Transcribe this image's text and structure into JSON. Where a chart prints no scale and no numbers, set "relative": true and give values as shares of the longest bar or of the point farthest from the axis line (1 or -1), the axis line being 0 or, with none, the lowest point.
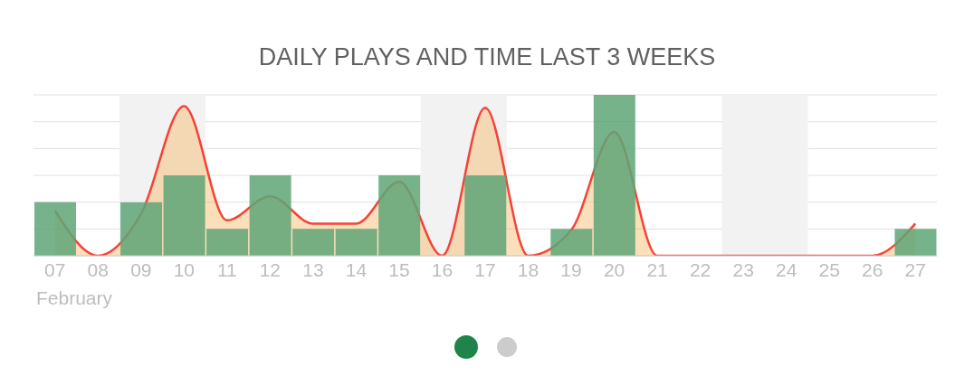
{
  "chart_data": {
    "type": "bar",
    "title": "DAILY PLAYS AND TIME LAST 3 WEEKS",
    "relative": true,
    "categories": [
      "07",
      "08",
      "09",
      "10",
      "11",
      "12",
      "13",
      "14",
      "15",
      "16",
      "17",
      "18",
      "19",
      "20",
      "21",
      "22",
      "23",
      "24",
      "25",
      "26",
      "27"
    ],
    "series": [
      {
        "type": "area",
        "color": "#f44336",
        "values": [
          0.28,
          0,
          0.26,
          0.93,
          0.22,
          0.37,
          0.2,
          0.2,
          0.46,
          0,
          0.92,
          0,
          0.16,
          0.77,
          0,
          0,
          0,
          0,
          0,
          0,
          0.2
        ]
      },
      {
        "color": "#5ea677",
        "values": [
          0.333,
          0,
          0.333,
          0.5,
          0.167,
          0.5,
          0.167,
          0.167,
          0.5,
          0,
          0.5,
          0,
          0.167,
          1,
          0,
          0,
          0,
          0,
          0,
          0,
          0.167
        ]
      }
    ],
    "bands": [
      {
        "axis": "x",
        "from": "09",
        "to": "10",
        "color": "#f2f2f2"
      },
      {
        "axis": "x",
        "from": "16",
        "to": "17",
        "color": "#f2f2f2"
      },
      {
        "axis": "x",
        "from": "23",
        "to": "24",
        "color": "#f2f2f2"
      }
    ],
    "annotations": [
      "February"
    ],
    "grid": "y"
  }
}
